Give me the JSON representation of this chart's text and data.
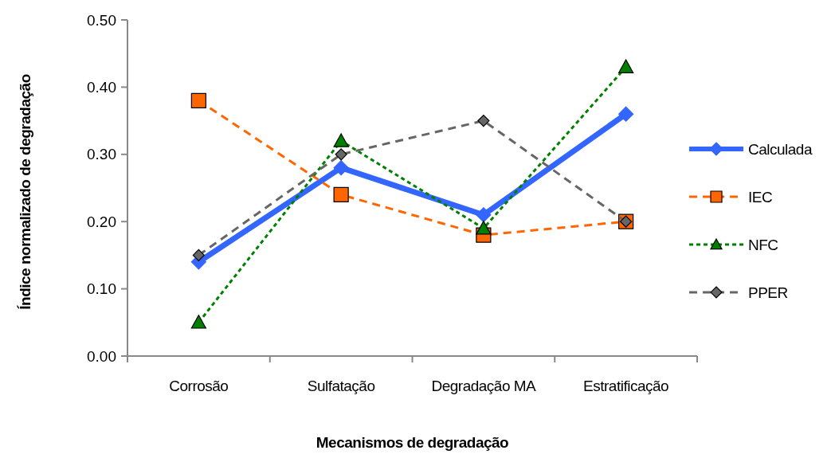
{
  "chart_data": {
    "type": "line",
    "xlabel": "Mecanismos de degradação",
    "ylabel": "Índice normalizado  de degradação",
    "categories": [
      "Corrosão",
      "Sulfatação",
      "Degradação MA",
      "Estratificação"
    ],
    "series": [
      {
        "name": "Calculada",
        "color": "#3366ff",
        "values": [
          0.14,
          0.28,
          0.21,
          0.36
        ],
        "marker": "diamond",
        "line_style": "solid"
      },
      {
        "name": "IEC",
        "color": "#ff6600",
        "values": [
          0.38,
          0.24,
          0.18,
          0.2
        ],
        "marker": "square",
        "line_style": "dashed"
      },
      {
        "name": "NFC",
        "color": "#008000",
        "values": [
          0.05,
          0.32,
          0.19,
          0.43
        ],
        "marker": "triangle",
        "line_style": "dotted"
      },
      {
        "name": "PPER",
        "color": "#666666",
        "values": [
          0.15,
          0.3,
          0.35,
          0.2
        ],
        "marker": "diamond",
        "line_style": "dashed"
      }
    ],
    "ylim": [
      0,
      0.5
    ],
    "yticks": [
      {
        "value": 0,
        "label": "0.00"
      },
      {
        "value": 0.1,
        "label": "0.10"
      },
      {
        "value": 0.2,
        "label": "0.20"
      },
      {
        "value": 0.3,
        "label": "0.30"
      },
      {
        "value": 0.4,
        "label": "0.40"
      },
      {
        "value": 0.5,
        "label": "0.50"
      }
    ],
    "grid": false,
    "legend": "right"
  }
}
